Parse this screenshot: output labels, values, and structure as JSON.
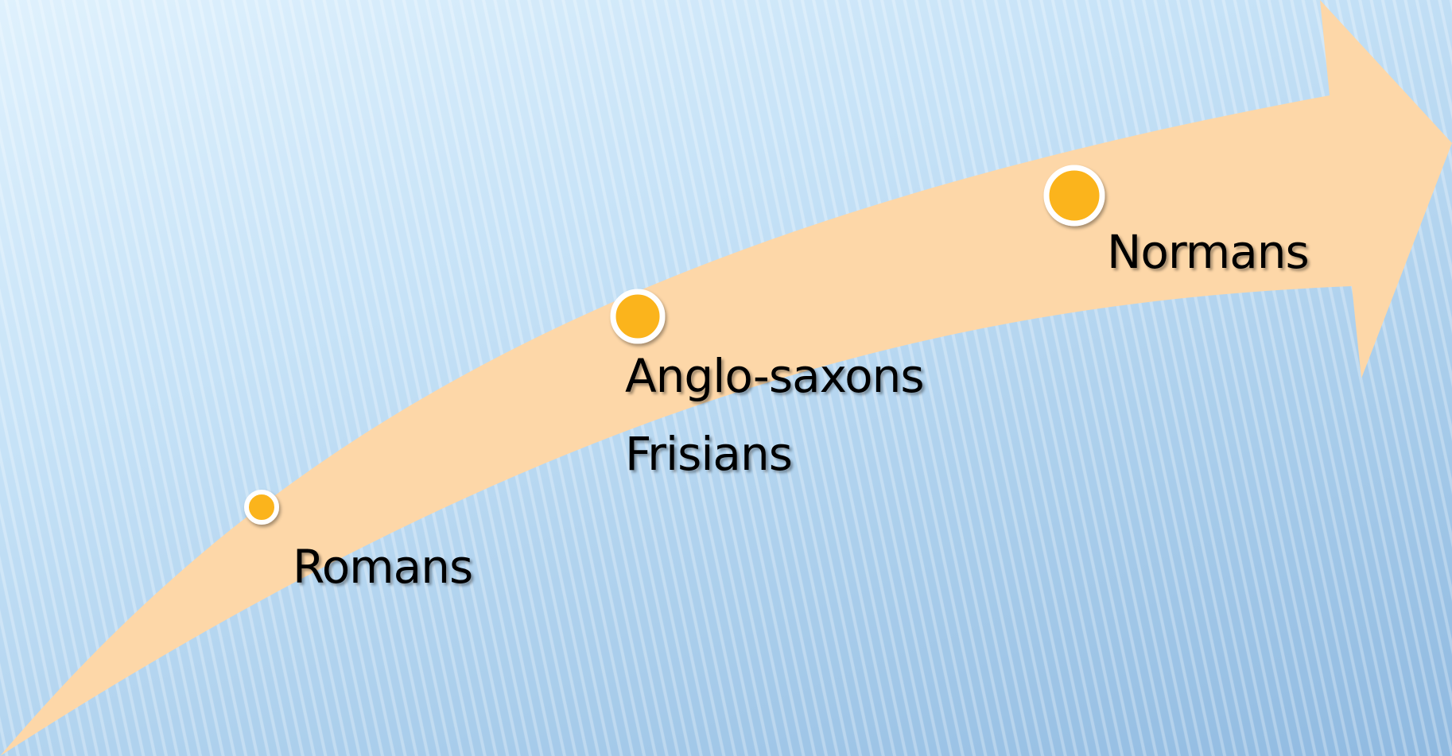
{
  "diagram": {
    "arrow_color": "#fdd7a8",
    "dot_color": "#fbb41a",
    "dot_border_color": "#ffffff",
    "items": [
      {
        "label": "Romans"
      },
      {
        "label": "Anglo-saxons"
      },
      {
        "label": "Frisians"
      },
      {
        "label": "Normans"
      }
    ]
  }
}
